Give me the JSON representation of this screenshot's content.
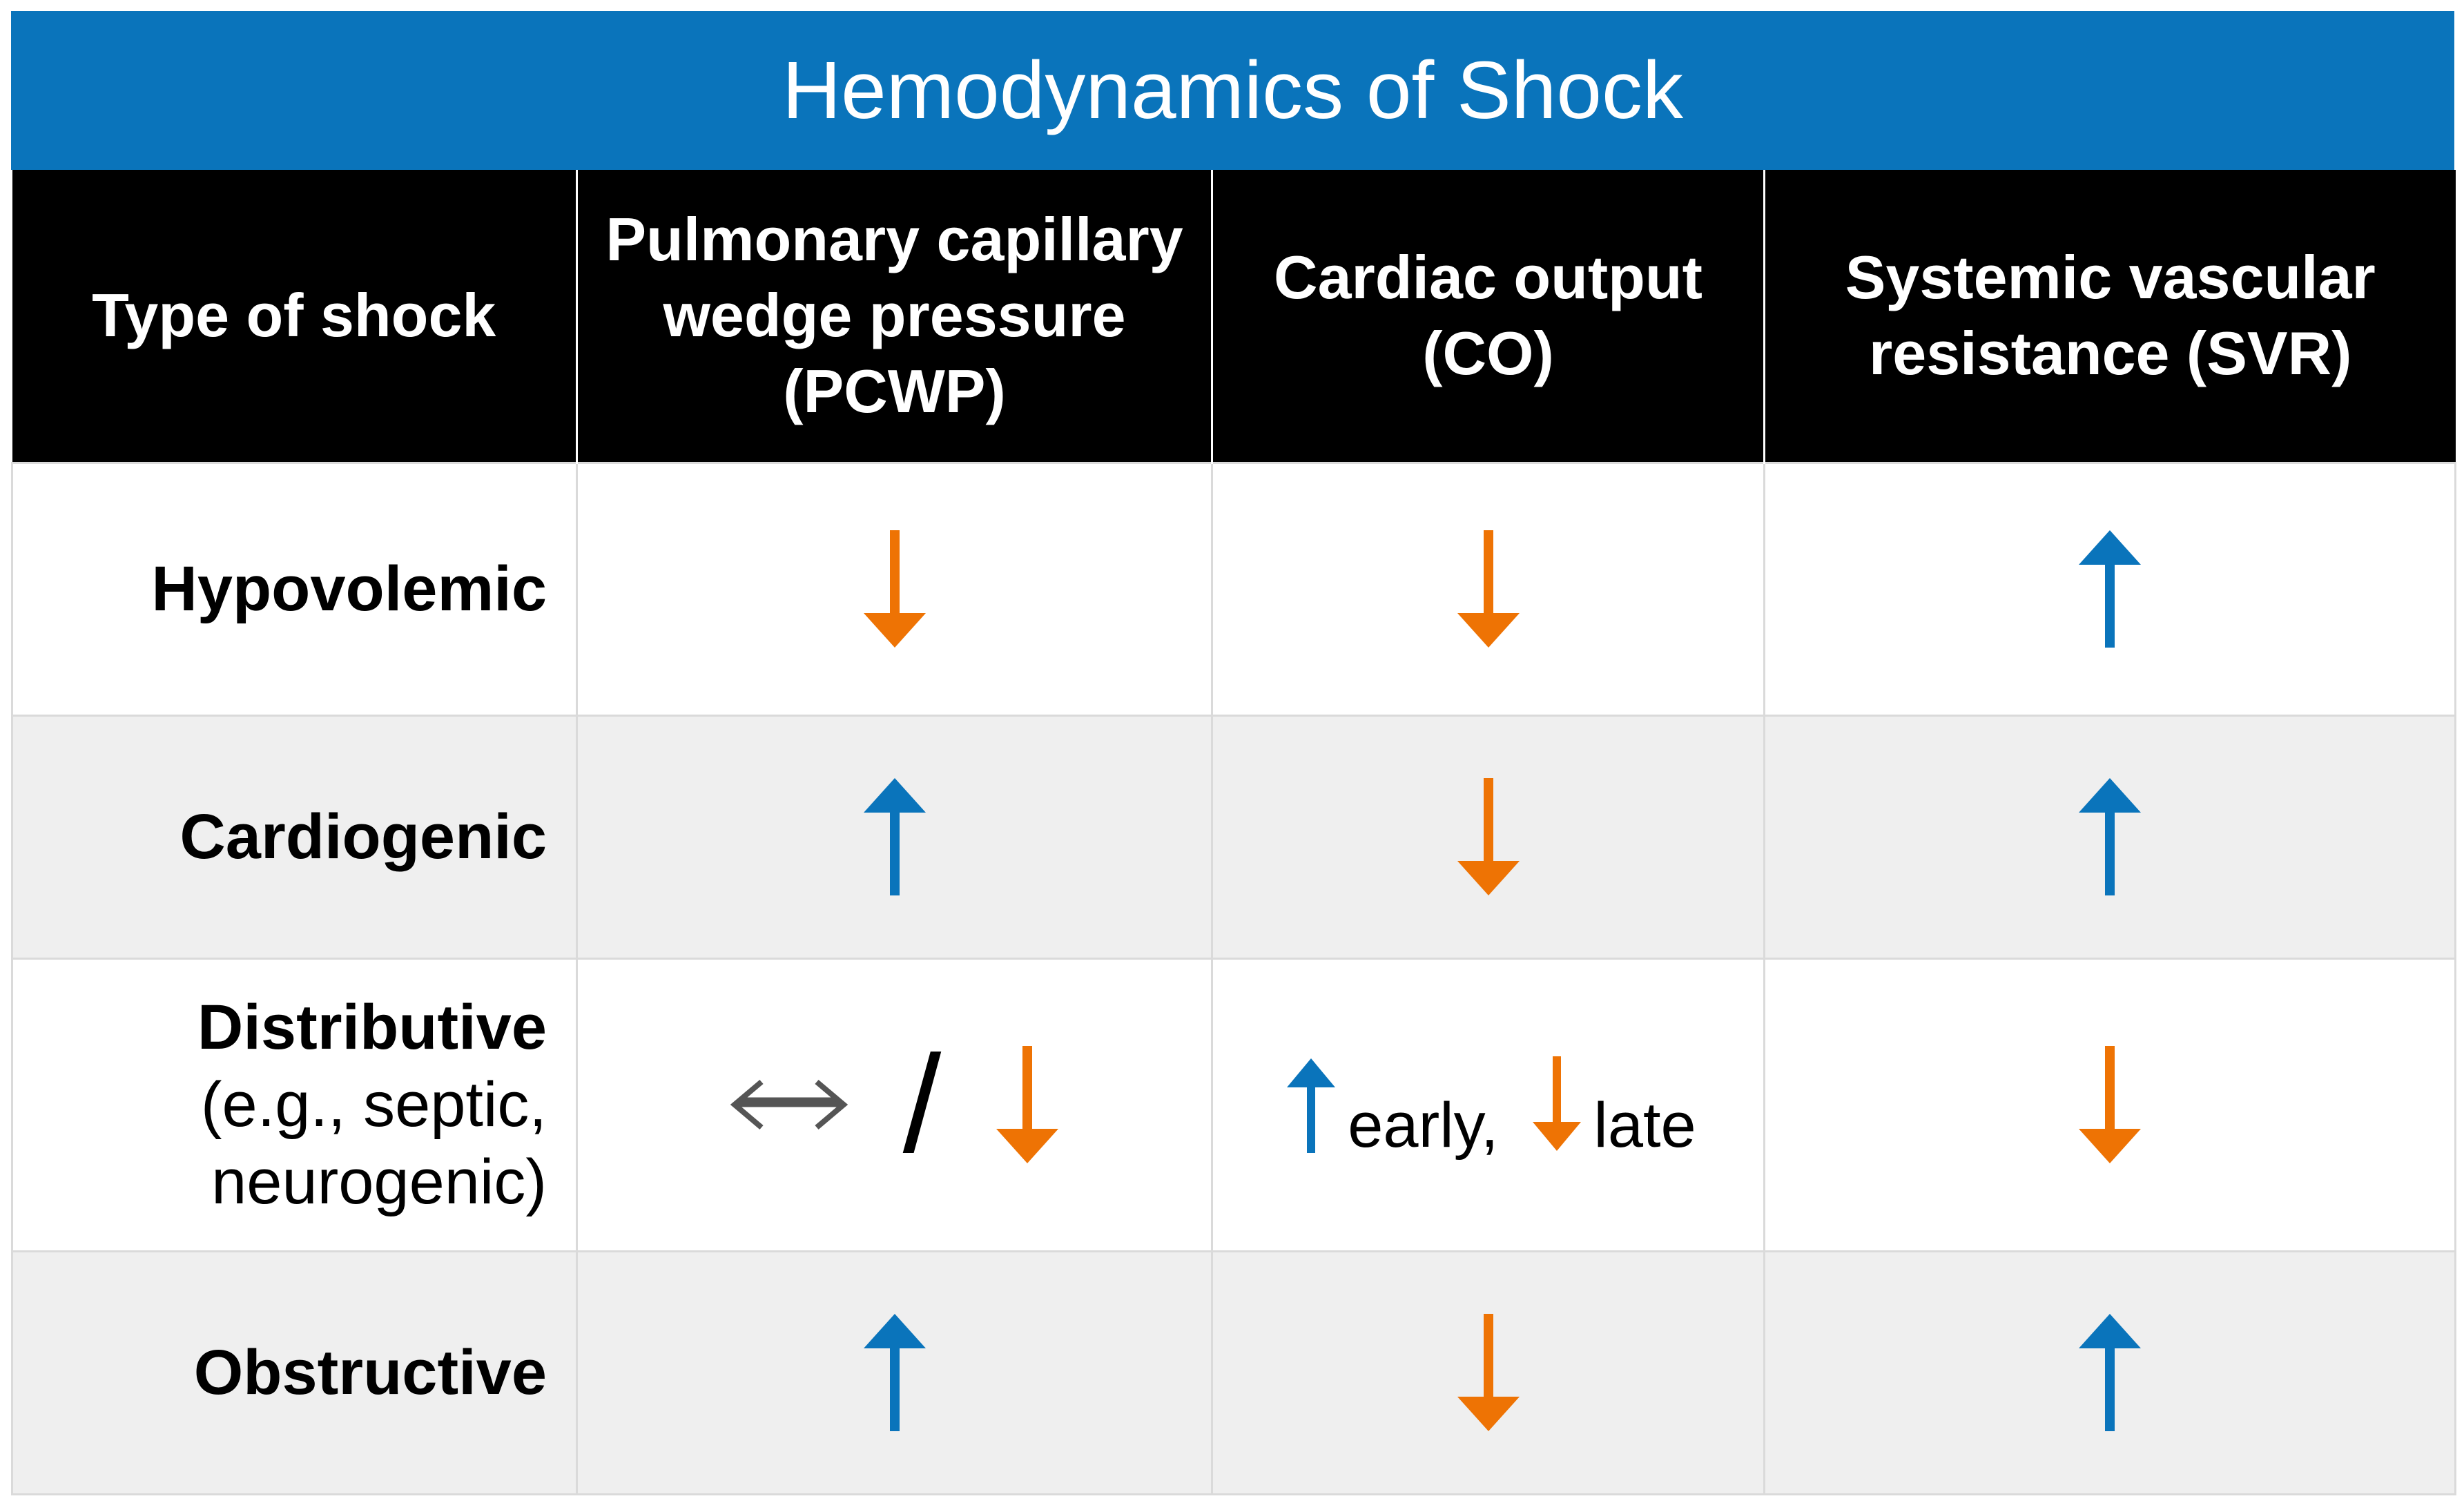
{
  "title": "Hemodynamics of Shock",
  "colors": {
    "title_bar": "#0a74bb",
    "header_bg": "#000000",
    "up_arrow": "#0a74bb",
    "down_arrow": "#ee7304",
    "unchanged_arrow": "#555555",
    "stripe": "#efefef"
  },
  "headers": [
    "Type of shock",
    "Pulmonary capillary wedge pressure (PCWP)",
    "Cardiac output (CO)",
    "Systemic vascular resistance (SVR)"
  ],
  "rows": [
    {
      "type": "Hypovolemic",
      "type_sub": "",
      "pcwp": "decreased",
      "co": "decreased",
      "svr": "increased"
    },
    {
      "type": "Cardiogenic",
      "type_sub": "",
      "pcwp": "increased",
      "co": "decreased",
      "svr": "increased"
    },
    {
      "type": "Distributive",
      "type_sub": "(e.g., septic, neurogenic)",
      "pcwp": "unchanged / decreased",
      "pcwp_separator": "/",
      "co": "increased early, decreased late",
      "co_early_label": "early,",
      "co_late_label": "late",
      "svr": "decreased"
    },
    {
      "type": "Obstructive",
      "type_sub": "",
      "pcwp": "increased",
      "co": "decreased",
      "svr": "increased"
    }
  ]
}
